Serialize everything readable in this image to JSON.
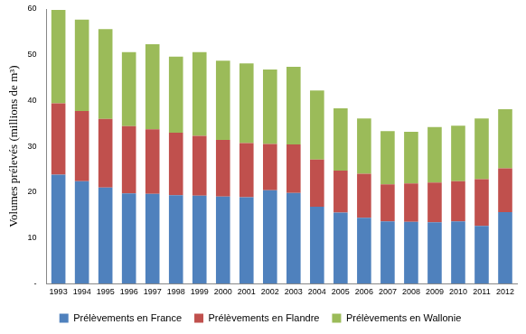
{
  "chart_data": {
    "type": "bar",
    "y_label": "Volumes prélevés (millions de m³)",
    "categories": [
      "1993",
      "1994",
      "1995",
      "1996",
      "1997",
      "1998",
      "1999",
      "2000",
      "2001",
      "2002",
      "2003",
      "2004",
      "2005",
      "2006",
      "2007",
      "2008",
      "2009",
      "2010",
      "2011",
      "2012"
    ],
    "series": [
      {
        "name": "Prélèvements en France",
        "color": "#4f81bd",
        "values": [
          23.8,
          22.4,
          21.0,
          19.7,
          19.6,
          19.3,
          19.2,
          19.0,
          18.9,
          20.4,
          19.8,
          16.8,
          15.5,
          14.4,
          13.6,
          13.5,
          13.4,
          13.6,
          12.6,
          15.6
        ]
      },
      {
        "name": "Prélèvements en Flandre",
        "color": "#c0504d",
        "values": [
          15.6,
          15.3,
          15.0,
          14.7,
          14.1,
          13.7,
          13.1,
          12.4,
          11.8,
          10.1,
          10.6,
          10.3,
          9.2,
          9.6,
          8.1,
          8.4,
          8.7,
          8.8,
          10.2,
          9.6
        ]
      },
      {
        "name": "Prélèvements en Wallonie",
        "color": "#9bbb59",
        "values": [
          20.4,
          20.0,
          19.6,
          16.2,
          18.6,
          16.6,
          18.3,
          17.3,
          17.4,
          16.3,
          17.0,
          15.1,
          13.6,
          12.1,
          11.6,
          11.3,
          12.1,
          12.1,
          13.3,
          12.9
        ]
      }
    ],
    "ylim": [
      0,
      60
    ],
    "yticks": [
      {
        "value": 0,
        "label": "-"
      },
      10,
      20,
      30,
      40,
      50,
      60
    ],
    "stacked": true,
    "grid": false,
    "legend": "bottom"
  }
}
